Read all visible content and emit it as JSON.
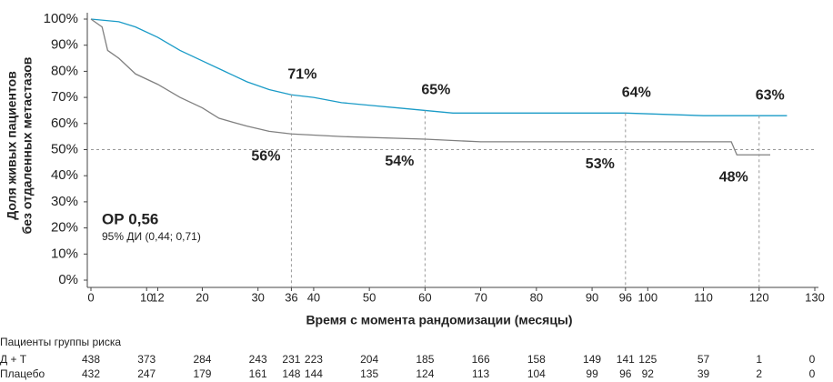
{
  "chart_data": {
    "type": "km",
    "ylabel": [
      "Доля живых пациентов",
      "без отдаленных метастазов"
    ],
    "xlabel": "Время с момента рандомизации (месяцы)",
    "hr_text": "ОР 0,56",
    "ci_text": "95% ДИ (0,44; 0,71)",
    "xlim": [
      0,
      130
    ],
    "xticks": [
      0,
      10,
      12,
      20,
      30,
      36,
      40,
      50,
      60,
      70,
      80,
      90,
      96,
      100,
      110,
      120,
      130
    ],
    "ylim": [
      0,
      100
    ],
    "yticks": [
      {
        "value": 0,
        "label": "0%"
      },
      {
        "value": 10,
        "label": "10%"
      },
      {
        "value": 20,
        "label": "20%"
      },
      {
        "value": 30,
        "label": "30%"
      },
      {
        "value": 40,
        "label": "40%"
      },
      {
        "value": 50,
        "label": "50%"
      },
      {
        "value": 60,
        "label": "60%"
      },
      {
        "value": 70,
        "label": "70%"
      },
      {
        "value": 80,
        "label": "80%"
      },
      {
        "value": 90,
        "label": "90%"
      },
      {
        "value": 100,
        "label": "100%"
      }
    ],
    "reference_y": 50,
    "landmark_x": [
      36,
      60,
      96,
      120
    ],
    "series": [
      {
        "name": "Д + Т",
        "color": "#1a9bc7",
        "x": [
          0,
          5,
          8,
          12,
          16,
          20,
          24,
          28,
          32,
          36,
          40,
          45,
          50,
          55,
          60,
          65,
          80,
          96,
          110,
          125
        ],
        "values": [
          100,
          99,
          97,
          93,
          88,
          84,
          80,
          76,
          73,
          71,
          70,
          68,
          67,
          66,
          65,
          64,
          64,
          64,
          63,
          63
        ],
        "landmarks": [
          {
            "value": 71,
            "label": "71%"
          },
          {
            "value": 65,
            "label": "65%"
          },
          {
            "value": 64,
            "label": "64%"
          },
          {
            "value": 63,
            "label": "63%"
          }
        ]
      },
      {
        "name": "Плацебо",
        "color": "#808080",
        "x": [
          0,
          2,
          3,
          5,
          8,
          12,
          16,
          20,
          23,
          28,
          32,
          36,
          45,
          60,
          70,
          96,
          115,
          116,
          122
        ],
        "values": [
          100,
          97,
          88,
          85,
          79,
          75,
          70,
          66,
          62,
          59,
          57,
          56,
          55,
          54,
          53,
          53,
          53,
          48,
          48
        ],
        "landmarks": [
          {
            "value": 56,
            "label": "56%"
          },
          {
            "value": 54,
            "label": "54%"
          },
          {
            "value": 53,
            "label": "53%"
          },
          {
            "value": 48,
            "label": "48%"
          }
        ]
      }
    ],
    "risk_table": {
      "title": "Пациенты группы риска",
      "times": [
        0,
        10,
        20,
        30,
        36,
        40,
        50,
        60,
        70,
        80,
        90,
        96,
        100,
        110,
        120,
        130
      ],
      "rows": [
        {
          "values": [
            438,
            373,
            284,
            243,
            231,
            223,
            204,
            185,
            166,
            158,
            149,
            141,
            125,
            57,
            1,
            0
          ]
        },
        {
          "values": [
            432,
            247,
            179,
            161,
            148,
            144,
            135,
            124,
            113,
            104,
            99,
            96,
            92,
            39,
            2,
            0
          ]
        }
      ]
    }
  }
}
